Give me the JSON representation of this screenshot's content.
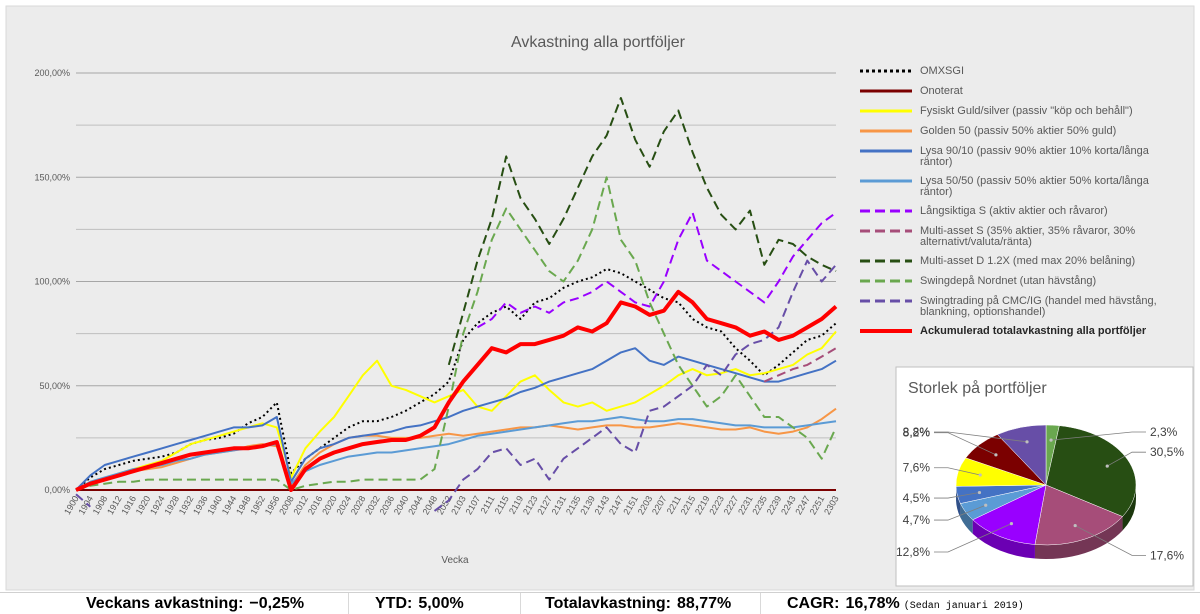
{
  "chart_data": [
    {
      "type": "line",
      "title": "Avkastning alla portföljer",
      "xlabel": "Vecka",
      "ylabel": "",
      "ylim": [
        0,
        200
      ],
      "yticks": [
        "0,00%",
        "50,00%",
        "100,00%",
        "150,00%",
        "200,00%"
      ],
      "yticks_values": [
        0,
        50,
        100,
        150,
        200
      ],
      "grid": "horizontal",
      "legend_position": "right",
      "x": [
        "1900",
        "1904",
        "1908",
        "1912",
        "1916",
        "1920",
        "1924",
        "1928",
        "1932",
        "1936",
        "1940",
        "1944",
        "1948",
        "1952",
        "1956",
        "2008",
        "2012",
        "2016",
        "2020",
        "2024",
        "2028",
        "2032",
        "2036",
        "2040",
        "2044",
        "2048",
        "2052",
        "2103",
        "2107",
        "2111",
        "2115",
        "2119",
        "2123",
        "2127",
        "2131",
        "2135",
        "2139",
        "2143",
        "2147",
        "2151",
        "2203",
        "2207",
        "2211",
        "2215",
        "2219",
        "2223",
        "2227",
        "2231",
        "2235",
        "2239",
        "2243",
        "2247",
        "2251",
        "2303"
      ],
      "series": [
        {
          "name": "OMXSGI",
          "color": "#000000",
          "style": "dotted",
          "width": 2,
          "values": [
            0,
            6,
            10,
            12,
            14,
            15,
            16,
            18,
            22,
            24,
            25,
            27,
            32,
            35,
            42,
            8,
            15,
            20,
            25,
            30,
            33,
            33,
            35,
            38,
            42,
            46,
            52,
            72,
            80,
            85,
            88,
            82,
            90,
            92,
            97,
            100,
            102,
            106,
            104,
            100,
            96,
            92,
            90,
            82,
            78,
            76,
            68,
            62,
            55,
            60,
            66,
            72,
            74,
            80
          ]
        },
        {
          "name": "Onoterat",
          "color": "#7b0000",
          "style": "solid",
          "width": 2,
          "values": [
            0,
            0,
            0,
            0,
            0,
            0,
            0,
            0,
            0,
            0,
            0,
            0,
            0,
            0,
            0,
            0,
            0,
            0,
            0,
            0,
            0,
            0,
            0,
            0,
            0,
            0,
            0,
            0,
            0,
            0,
            0,
            0,
            0,
            0,
            0,
            0,
            0,
            0,
            0,
            0,
            0,
            0,
            0,
            0,
            0,
            0,
            0,
            0,
            0,
            0,
            0,
            0,
            0,
            0
          ]
        },
        {
          "name": "Fysiskt Guld/silver (passiv \"köp och behåll\")",
          "color": "#ffff00",
          "style": "solid",
          "width": 2,
          "values": [
            0,
            3,
            5,
            8,
            10,
            12,
            14,
            18,
            22,
            24,
            26,
            28,
            30,
            32,
            30,
            6,
            20,
            28,
            35,
            45,
            55,
            62,
            50,
            48,
            45,
            42,
            45,
            48,
            40,
            38,
            45,
            52,
            55,
            48,
            42,
            40,
            42,
            38,
            40,
            42,
            46,
            50,
            55,
            58,
            55,
            56,
            58,
            55,
            56,
            58,
            60,
            65,
            68,
            76
          ]
        },
        {
          "name": "Golden 50 (passiv 50% aktier 50% guld)",
          "color": "#f79646",
          "style": "solid",
          "width": 2,
          "values": [
            0,
            3,
            5,
            7,
            9,
            10,
            11,
            13,
            15,
            17,
            18,
            19,
            21,
            22,
            21,
            2,
            12,
            18,
            22,
            25,
            26,
            26,
            25,
            25,
            25,
            26,
            27,
            26,
            27,
            28,
            29,
            30,
            30,
            31,
            30,
            29,
            30,
            31,
            31,
            30,
            30,
            31,
            32,
            31,
            30,
            29,
            29,
            30,
            28,
            27,
            28,
            30,
            34,
            39
          ]
        },
        {
          "name": "Lysa 90/10 (passiv 90% aktier 10% korta/långa räntor)",
          "color": "#4472c4",
          "style": "solid",
          "width": 2,
          "values": [
            0,
            7,
            12,
            14,
            16,
            18,
            20,
            22,
            24,
            26,
            28,
            30,
            30,
            31,
            35,
            4,
            15,
            20,
            22,
            25,
            26,
            27,
            28,
            30,
            31,
            33,
            35,
            38,
            40,
            42,
            44,
            47,
            49,
            52,
            54,
            56,
            58,
            62,
            66,
            68,
            62,
            60,
            64,
            62,
            60,
            58,
            56,
            54,
            52,
            52,
            54,
            56,
            58,
            62
          ]
        },
        {
          "name": "Lysa 50/50 (passiv 50% aktier 50% korta/långa räntor)",
          "color": "#5b9bd5",
          "style": "solid",
          "width": 2,
          "values": [
            0,
            4,
            6,
            8,
            10,
            11,
            12,
            14,
            15,
            17,
            18,
            19,
            20,
            21,
            22,
            3,
            9,
            12,
            14,
            16,
            17,
            18,
            18,
            19,
            20,
            21,
            22,
            24,
            26,
            27,
            28,
            29,
            30,
            31,
            32,
            33,
            33,
            34,
            35,
            34,
            33,
            33,
            34,
            34,
            33,
            32,
            31,
            31,
            30,
            30,
            30,
            31,
            32,
            33
          ]
        },
        {
          "name": "Långsiktiga S (aktiv aktier och råvaror)",
          "color": "#9900ff",
          "style": "dashed",
          "width": 2,
          "values": [
            null,
            null,
            null,
            null,
            null,
            null,
            null,
            null,
            null,
            null,
            null,
            null,
            null,
            null,
            null,
            null,
            null,
            null,
            null,
            null,
            null,
            null,
            null,
            null,
            null,
            null,
            null,
            null,
            78,
            82,
            90,
            85,
            88,
            85,
            90,
            92,
            95,
            100,
            95,
            90,
            88,
            100,
            120,
            133,
            110,
            105,
            100,
            95,
            90,
            100,
            112,
            120,
            128,
            133
          ]
        },
        {
          "name": "Multi-asset S (35% aktier, 35% råvaror, 30% alternativt/valuta/ränta)",
          "color": "#a64d79",
          "style": "dashed",
          "width": 2,
          "values": [
            null,
            null,
            null,
            null,
            null,
            null,
            null,
            null,
            null,
            null,
            null,
            null,
            null,
            null,
            null,
            null,
            null,
            null,
            null,
            null,
            null,
            null,
            null,
            null,
            null,
            null,
            null,
            null,
            null,
            null,
            null,
            null,
            null,
            null,
            null,
            null,
            null,
            null,
            null,
            null,
            null,
            null,
            null,
            null,
            null,
            null,
            null,
            null,
            52,
            55,
            58,
            60,
            64,
            68
          ]
        },
        {
          "name": "Multi-asset D 1.2X (med max 20% belåning)",
          "color": "#274e13",
          "style": "dashed",
          "width": 2,
          "values": [
            null,
            null,
            null,
            null,
            null,
            null,
            null,
            null,
            null,
            null,
            null,
            null,
            null,
            null,
            null,
            null,
            null,
            null,
            null,
            null,
            null,
            null,
            null,
            null,
            null,
            null,
            60,
            85,
            110,
            130,
            160,
            140,
            130,
            118,
            130,
            145,
            160,
            170,
            188,
            168,
            155,
            172,
            182,
            162,
            145,
            132,
            125,
            134,
            108,
            120,
            118,
            112,
            108,
            105
          ]
        },
        {
          "name": "Swingdepå Nordnet (utan hävstång)",
          "color": "#6aa84f",
          "style": "dashed",
          "width": 2,
          "values": [
            0,
            2,
            3,
            4,
            4,
            5,
            5,
            5,
            5,
            5,
            5,
            5,
            5,
            5,
            5,
            0,
            2,
            3,
            4,
            4,
            5,
            5,
            5,
            5,
            5,
            10,
            40,
            75,
            95,
            120,
            135,
            125,
            115,
            105,
            100,
            110,
            125,
            150,
            120,
            110,
            90,
            75,
            60,
            50,
            40,
            45,
            55,
            45,
            35,
            35,
            30,
            25,
            15,
            30
          ]
        },
        {
          "name": "Swingtrading på CMC/IG (handel med hävstång, blankning, optionshandel)",
          "color": "#674ea7",
          "style": "dashed",
          "width": 2,
          "values": [
            -2,
            -8,
            null,
            null,
            null,
            null,
            null,
            null,
            null,
            null,
            null,
            null,
            null,
            null,
            null,
            null,
            null,
            null,
            null,
            null,
            null,
            null,
            null,
            null,
            null,
            -10,
            -5,
            5,
            10,
            18,
            20,
            12,
            15,
            5,
            15,
            20,
            25,
            30,
            22,
            18,
            38,
            40,
            45,
            50,
            60,
            55,
            65,
            70,
            72,
            78,
            95,
            110,
            100,
            108
          ]
        },
        {
          "name": "Ackumulerad totalavkastning alla portföljer",
          "color": "#ff0000",
          "style": "solid",
          "width": 4,
          "values": [
            0,
            3,
            5,
            7,
            9,
            11,
            13,
            15,
            17,
            18,
            19,
            20,
            20,
            21,
            23,
            0,
            10,
            15,
            18,
            20,
            22,
            23,
            24,
            24,
            26,
            30,
            42,
            52,
            60,
            68,
            66,
            70,
            70,
            72,
            74,
            78,
            76,
            80,
            90,
            88,
            84,
            86,
            95,
            90,
            82,
            80,
            78,
            74,
            76,
            72,
            74,
            78,
            82,
            88
          ]
        }
      ]
    },
    {
      "type": "pie",
      "title": "Storlek på portföljer",
      "slices": [
        {
          "label": "2,3%",
          "value": 2.3,
          "color": "#6aa84f"
        },
        {
          "label": "30,5%",
          "value": 30.5,
          "color": "#274e13"
        },
        {
          "label": "17,6%",
          "value": 17.6,
          "color": "#a64d79"
        },
        {
          "label": "12,8%",
          "value": 12.8,
          "color": "#9900ff"
        },
        {
          "label": "4,7%",
          "value": 4.7,
          "color": "#5b9bd5"
        },
        {
          "label": "4,5%",
          "value": 4.5,
          "color": "#4472c4"
        },
        {
          "label": "7,6%",
          "value": 7.6,
          "color": "#ffff00"
        },
        {
          "label": "8,2%",
          "value": 8.2,
          "color": "#7b0000"
        },
        {
          "label": "8,8%",
          "value": 8.8,
          "color": "#674ea7"
        }
      ]
    }
  ],
  "stats": {
    "weekly_label": "Veckans avkastning:",
    "weekly_value": "−0,25%",
    "ytd_label": "YTD:",
    "ytd_value": "5,00%",
    "total_label": "Totalavkastning:",
    "total_value": "88,77%",
    "cagr_label": "CAGR:",
    "cagr_value": "16,78%",
    "cagr_note": "(Sedan januari 2019)"
  }
}
